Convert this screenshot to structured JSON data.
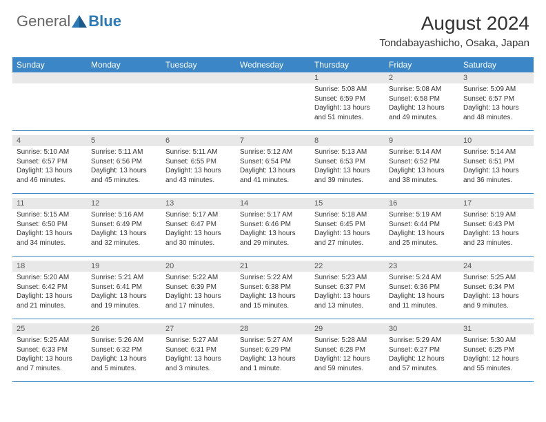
{
  "logo": {
    "general": "General",
    "blue": "Blue"
  },
  "title": "August 2024",
  "location": "Tondabayashicho, Osaka, Japan",
  "colors": {
    "header_bg": "#3b86c7",
    "header_text": "#ffffff",
    "date_bar_bg": "#e8e8e8",
    "border": "#3b86c7",
    "logo_general": "#666666",
    "logo_blue": "#2a7ab8"
  },
  "day_names": [
    "Sunday",
    "Monday",
    "Tuesday",
    "Wednesday",
    "Thursday",
    "Friday",
    "Saturday"
  ],
  "weeks": [
    [
      null,
      null,
      null,
      null,
      {
        "d": "1",
        "sr": "5:08 AM",
        "ss": "6:59 PM",
        "dl": "13 hours and 51 minutes."
      },
      {
        "d": "2",
        "sr": "5:08 AM",
        "ss": "6:58 PM",
        "dl": "13 hours and 49 minutes."
      },
      {
        "d": "3",
        "sr": "5:09 AM",
        "ss": "6:57 PM",
        "dl": "13 hours and 48 minutes."
      }
    ],
    [
      {
        "d": "4",
        "sr": "5:10 AM",
        "ss": "6:57 PM",
        "dl": "13 hours and 46 minutes."
      },
      {
        "d": "5",
        "sr": "5:11 AM",
        "ss": "6:56 PM",
        "dl": "13 hours and 45 minutes."
      },
      {
        "d": "6",
        "sr": "5:11 AM",
        "ss": "6:55 PM",
        "dl": "13 hours and 43 minutes."
      },
      {
        "d": "7",
        "sr": "5:12 AM",
        "ss": "6:54 PM",
        "dl": "13 hours and 41 minutes."
      },
      {
        "d": "8",
        "sr": "5:13 AM",
        "ss": "6:53 PM",
        "dl": "13 hours and 39 minutes."
      },
      {
        "d": "9",
        "sr": "5:14 AM",
        "ss": "6:52 PM",
        "dl": "13 hours and 38 minutes."
      },
      {
        "d": "10",
        "sr": "5:14 AM",
        "ss": "6:51 PM",
        "dl": "13 hours and 36 minutes."
      }
    ],
    [
      {
        "d": "11",
        "sr": "5:15 AM",
        "ss": "6:50 PM",
        "dl": "13 hours and 34 minutes."
      },
      {
        "d": "12",
        "sr": "5:16 AM",
        "ss": "6:49 PM",
        "dl": "13 hours and 32 minutes."
      },
      {
        "d": "13",
        "sr": "5:17 AM",
        "ss": "6:47 PM",
        "dl": "13 hours and 30 minutes."
      },
      {
        "d": "14",
        "sr": "5:17 AM",
        "ss": "6:46 PM",
        "dl": "13 hours and 29 minutes."
      },
      {
        "d": "15",
        "sr": "5:18 AM",
        "ss": "6:45 PM",
        "dl": "13 hours and 27 minutes."
      },
      {
        "d": "16",
        "sr": "5:19 AM",
        "ss": "6:44 PM",
        "dl": "13 hours and 25 minutes."
      },
      {
        "d": "17",
        "sr": "5:19 AM",
        "ss": "6:43 PM",
        "dl": "13 hours and 23 minutes."
      }
    ],
    [
      {
        "d": "18",
        "sr": "5:20 AM",
        "ss": "6:42 PM",
        "dl": "13 hours and 21 minutes."
      },
      {
        "d": "19",
        "sr": "5:21 AM",
        "ss": "6:41 PM",
        "dl": "13 hours and 19 minutes."
      },
      {
        "d": "20",
        "sr": "5:22 AM",
        "ss": "6:39 PM",
        "dl": "13 hours and 17 minutes."
      },
      {
        "d": "21",
        "sr": "5:22 AM",
        "ss": "6:38 PM",
        "dl": "13 hours and 15 minutes."
      },
      {
        "d": "22",
        "sr": "5:23 AM",
        "ss": "6:37 PM",
        "dl": "13 hours and 13 minutes."
      },
      {
        "d": "23",
        "sr": "5:24 AM",
        "ss": "6:36 PM",
        "dl": "13 hours and 11 minutes."
      },
      {
        "d": "24",
        "sr": "5:25 AM",
        "ss": "6:34 PM",
        "dl": "13 hours and 9 minutes."
      }
    ],
    [
      {
        "d": "25",
        "sr": "5:25 AM",
        "ss": "6:33 PM",
        "dl": "13 hours and 7 minutes."
      },
      {
        "d": "26",
        "sr": "5:26 AM",
        "ss": "6:32 PM",
        "dl": "13 hours and 5 minutes."
      },
      {
        "d": "27",
        "sr": "5:27 AM",
        "ss": "6:31 PM",
        "dl": "13 hours and 3 minutes."
      },
      {
        "d": "28",
        "sr": "5:27 AM",
        "ss": "6:29 PM",
        "dl": "13 hours and 1 minute."
      },
      {
        "d": "29",
        "sr": "5:28 AM",
        "ss": "6:28 PM",
        "dl": "12 hours and 59 minutes."
      },
      {
        "d": "30",
        "sr": "5:29 AM",
        "ss": "6:27 PM",
        "dl": "12 hours and 57 minutes."
      },
      {
        "d": "31",
        "sr": "5:30 AM",
        "ss": "6:25 PM",
        "dl": "12 hours and 55 minutes."
      }
    ]
  ],
  "labels": {
    "sunrise": "Sunrise:",
    "sunset": "Sunset:",
    "daylight": "Daylight:"
  }
}
